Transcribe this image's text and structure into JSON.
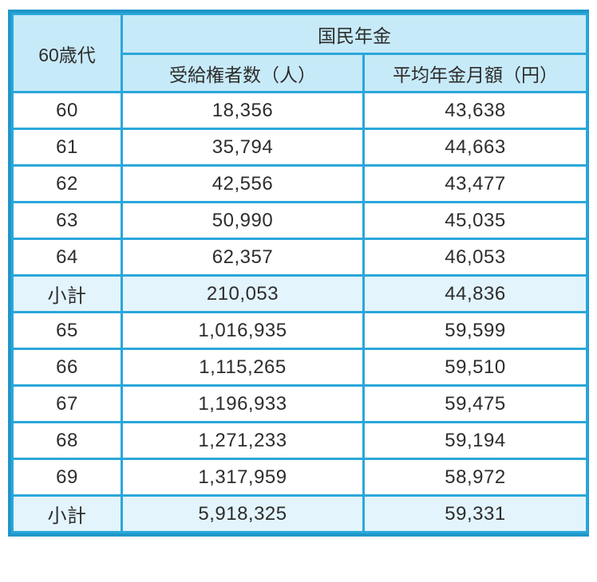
{
  "colors": {
    "border-inner": "#2AA7DA",
    "border-outer": "#2096C9",
    "header-bg": "#C7EAF8",
    "subtotal-bg": "#E3F4FC",
    "text": "#2D2D2D",
    "page-bg": "#FFFFFF"
  },
  "table": {
    "corner_header": "60歳代",
    "group_header": "国民年金",
    "sub_headers": [
      "受給権者数（人）",
      "平均年金月額（円）"
    ],
    "rows": [
      {
        "age": "60",
        "recipients": "18,356",
        "average": "43,638",
        "is_subtotal": false
      },
      {
        "age": "61",
        "recipients": "35,794",
        "average": "44,663",
        "is_subtotal": false
      },
      {
        "age": "62",
        "recipients": "42,556",
        "average": "43,477",
        "is_subtotal": false
      },
      {
        "age": "63",
        "recipients": "50,990",
        "average": "45,035",
        "is_subtotal": false
      },
      {
        "age": "64",
        "recipients": "62,357",
        "average": "46,053",
        "is_subtotal": false
      },
      {
        "age": "小計",
        "recipients": "210,053",
        "average": "44,836",
        "is_subtotal": true
      },
      {
        "age": "65",
        "recipients": "1,016,935",
        "average": "59,599",
        "is_subtotal": false
      },
      {
        "age": "66",
        "recipients": "1,115,265",
        "average": "59,510",
        "is_subtotal": false
      },
      {
        "age": "67",
        "recipients": "1,196,933",
        "average": "59,475",
        "is_subtotal": false
      },
      {
        "age": "68",
        "recipients": "1,271,233",
        "average": "59,194",
        "is_subtotal": false
      },
      {
        "age": "69",
        "recipients": "1,317,959",
        "average": "58,972",
        "is_subtotal": false
      },
      {
        "age": "小計",
        "recipients": "5,918,325",
        "average": "59,331",
        "is_subtotal": true
      }
    ]
  },
  "chart_data": {
    "type": "table",
    "title": "国民年金",
    "row_header": "60歳代",
    "columns": [
      "受給権者数（人）",
      "平均年金月額（円）"
    ],
    "categories": [
      "60",
      "61",
      "62",
      "63",
      "64",
      "小計",
      "65",
      "66",
      "67",
      "68",
      "69",
      "小計"
    ],
    "series": [
      {
        "name": "受給権者数（人）",
        "values": [
          18356,
          35794,
          42556,
          50990,
          62357,
          210053,
          1016935,
          1115265,
          1196933,
          1271233,
          1317959,
          5918325
        ]
      },
      {
        "name": "平均年金月額（円）",
        "values": [
          43638,
          44663,
          43477,
          45035,
          46053,
          44836,
          59599,
          59510,
          59475,
          59194,
          58972,
          59331
        ]
      }
    ]
  }
}
